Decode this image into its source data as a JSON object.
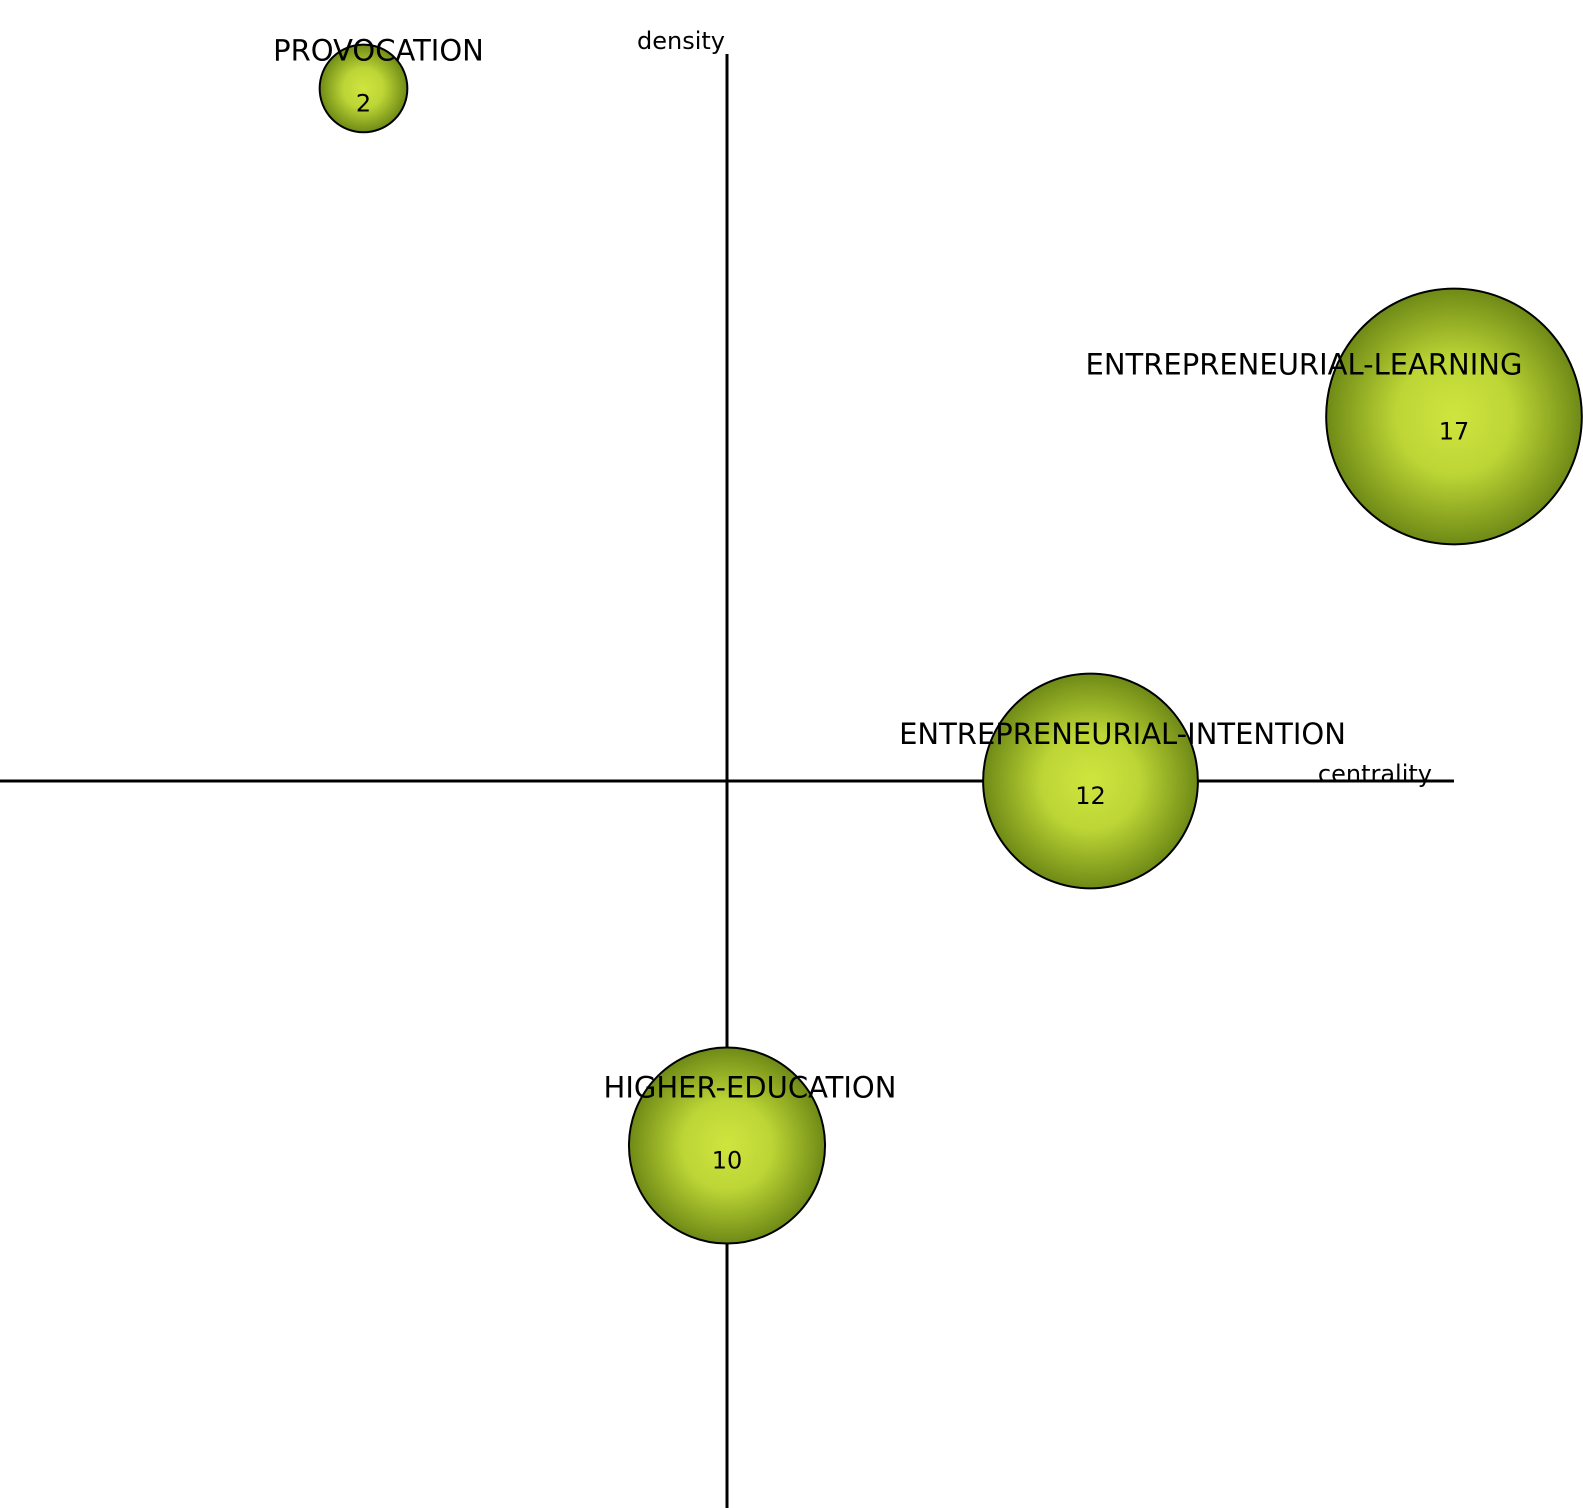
{
  "chart_data": {
    "type": "scatter",
    "title": "",
    "xlabel": "centrality",
    "ylabel": "density",
    "xlim": [
      -1,
      1
    ],
    "ylim": [
      -1,
      1
    ],
    "grid": false,
    "legend": "none",
    "bubble_color": "#b7d233",
    "bubble_edge_color": "#5c6b10",
    "points": [
      {
        "label": "PROVOCATION",
        "value": "2",
        "x": -0.5,
        "y": 0.95
      },
      {
        "label": "ENTREPRENEURIAL-LEARNING",
        "value": "17",
        "x": 1.0,
        "y": 0.5
      },
      {
        "label": "ENTREPRENEURIAL-INTENTION",
        "value": "12",
        "x": 0.5,
        "y": 0.0
      },
      {
        "label": "HIGHER-EDUCATION",
        "value": "10",
        "x": 0.0,
        "y": -0.5
      }
    ]
  }
}
